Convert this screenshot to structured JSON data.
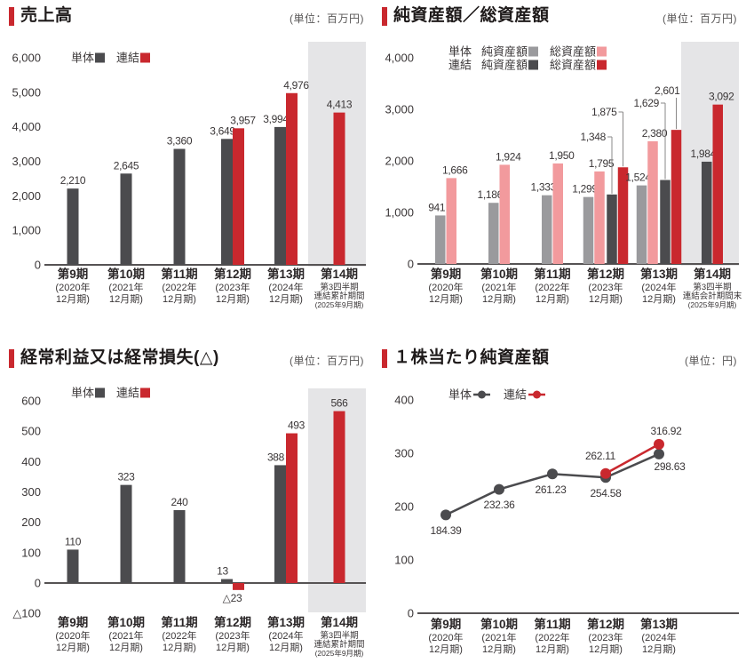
{
  "colors": {
    "dark": "#4b4b4e",
    "red": "#c9282e",
    "gray": "#9a9a9d",
    "pink": "#f29a9d",
    "band": "#e5e5e7",
    "axis": "#565354",
    "tick_text": "#3a3637",
    "label_text": "#3a3637",
    "cat_text": "#2b2728",
    "title_text": "#1e1a1a",
    "unit_text": "#595757",
    "leader": "#8a8888"
  },
  "charts": [
    {
      "title": "売上高",
      "unit": "(単位：百万円)",
      "legend_rows": [
        {
          "items": [
            {
              "label": "単体",
              "color_key": "dark"
            },
            {
              "label": "連結",
              "color_key": "red"
            }
          ]
        }
      ],
      "chart_data": {
        "type": "bar",
        "ylabel_unit": "百万円",
        "ylim": [
          0,
          6000
        ],
        "yticks": [
          {
            "v": 6000,
            "label": "6,000"
          },
          {
            "v": 5000,
            "label": "5,000"
          },
          {
            "v": 4000,
            "label": "4,000"
          },
          {
            "v": 3000,
            "label": "3,000"
          },
          {
            "v": 2000,
            "label": "2,000"
          },
          {
            "v": 1000,
            "label": "1,000"
          },
          {
            "v": 0,
            "label": "0"
          }
        ],
        "categories": [
          [
            "第9期",
            "(2020年",
            "12月期)"
          ],
          [
            "第10期",
            "(2021年",
            "12月期)"
          ],
          [
            "第11期",
            "(2022年",
            "12月期)"
          ],
          [
            "第12期",
            "(2023年",
            "12月期)"
          ],
          [
            "第13期",
            "(2024年",
            "12月期)"
          ],
          [
            "第14期",
            "第3四半期",
            "連結累計期間",
            "(2025年9月期)"
          ]
        ],
        "series": [
          {
            "name": "単体",
            "color_key": "dark",
            "values": [
              2210,
              2645,
              3360,
              3649,
              3994,
              null
            ]
          },
          {
            "name": "連結",
            "color_key": "red",
            "values": [
              null,
              null,
              null,
              3957,
              4976,
              4413
            ]
          }
        ],
        "highlight_last_category": true
      }
    },
    {
      "title": "純資産額／総資産額",
      "unit": "(単位：百万円)",
      "legend_rows": [
        {
          "prefix": "単体",
          "items": [
            {
              "label": "純資産額",
              "color_key": "gray"
            },
            {
              "label": "総資産額",
              "color_key": "pink"
            }
          ]
        },
        {
          "prefix": "連結",
          "items": [
            {
              "label": "純資産額",
              "color_key": "dark"
            },
            {
              "label": "総資産額",
              "color_key": "red"
            }
          ]
        }
      ],
      "chart_data": {
        "type": "bar",
        "ylabel_unit": "百万円",
        "ylim": [
          0,
          4000
        ],
        "yticks": [
          {
            "v": 4000,
            "label": "4,000"
          },
          {
            "v": 3000,
            "label": "3,000"
          },
          {
            "v": 2000,
            "label": "2,000"
          },
          {
            "v": 1000,
            "label": "1,000"
          },
          {
            "v": 0,
            "label": "0"
          }
        ],
        "categories": [
          [
            "第9期",
            "(2020年",
            "12月期)"
          ],
          [
            "第10期",
            "(2021年",
            "12月期)"
          ],
          [
            "第11期",
            "(2022年",
            "12月期)"
          ],
          [
            "第12期",
            "(2023年",
            "12月期)"
          ],
          [
            "第13期",
            "(2024年",
            "12月期)"
          ],
          [
            "第14期",
            "第3四半期",
            "連結会計期間末",
            "(2025年9月期)"
          ]
        ],
        "series": [
          {
            "name": "単体 純資産額",
            "color_key": "gray",
            "values": [
              941,
              1186,
              1333,
              1299,
              1524,
              null
            ]
          },
          {
            "name": "単体 総資産額",
            "color_key": "pink",
            "values": [
              1666,
              1924,
              1950,
              1795,
              2380,
              null
            ]
          },
          {
            "name": "連結 純資産額",
            "color_key": "dark",
            "values": [
              null,
              null,
              null,
              1348,
              1629,
              1984
            ]
          },
          {
            "name": "連結 総資産額",
            "color_key": "red",
            "values": [
              null,
              null,
              null,
              1875,
              2601,
              3092
            ]
          }
        ],
        "highlight_last_category": true
      }
    },
    {
      "title": "経常利益又は経常損失(△)",
      "unit": "(単位：百万円)",
      "legend_rows": [
        {
          "items": [
            {
              "label": "単体",
              "color_key": "dark"
            },
            {
              "label": "連結",
              "color_key": "red"
            }
          ]
        }
      ],
      "chart_data": {
        "type": "bar",
        "ylabel_unit": "百万円",
        "ylim": [
          -100,
          600
        ],
        "yticks": [
          {
            "v": 600,
            "label": "600"
          },
          {
            "v": 500,
            "label": "500"
          },
          {
            "v": 400,
            "label": "400"
          },
          {
            "v": 300,
            "label": "300"
          },
          {
            "v": 200,
            "label": "200"
          },
          {
            "v": 100,
            "label": "100"
          },
          {
            "v": 0,
            "label": "0"
          },
          {
            "v": -100,
            "label": "△100"
          }
        ],
        "categories": [
          [
            "第9期",
            "(2020年",
            "12月期)"
          ],
          [
            "第10期",
            "(2021年",
            "12月期)"
          ],
          [
            "第11期",
            "(2022年",
            "12月期)"
          ],
          [
            "第12期",
            "(2023年",
            "12月期)"
          ],
          [
            "第13期",
            "(2024年",
            "12月期)"
          ],
          [
            "第14期",
            "第3四半期",
            "連結累計期間",
            "(2025年9月期)"
          ]
        ],
        "series": [
          {
            "name": "単体",
            "color_key": "dark",
            "values": [
              110,
              323,
              240,
              13,
              388,
              null
            ]
          },
          {
            "name": "連結",
            "color_key": "red",
            "values": [
              null,
              null,
              null,
              -23,
              493,
              566
            ]
          }
        ],
        "highlight_last_category": true
      }
    },
    {
      "title": "１株当たり純資産額",
      "unit": "(単位：円)",
      "legend_rows": [
        {
          "items": [
            {
              "label": "単体",
              "color_key": "dark",
              "marker": "line-dot"
            },
            {
              "label": "連結",
              "color_key": "red",
              "marker": "line-dot"
            }
          ]
        }
      ],
      "chart_data": {
        "type": "line",
        "ylabel_unit": "円",
        "ylim": [
          0,
          400
        ],
        "decimals": 2,
        "yticks": [
          {
            "v": 400,
            "label": "400"
          },
          {
            "v": 300,
            "label": "300"
          },
          {
            "v": 200,
            "label": "200"
          },
          {
            "v": 100,
            "label": "100"
          },
          {
            "v": 0,
            "label": "0"
          }
        ],
        "categories": [
          [
            "第9期",
            "(2020年",
            "12月期)"
          ],
          [
            "第10期",
            "(2021年",
            "12月期)"
          ],
          [
            "第11期",
            "(2022年",
            "12月期)"
          ],
          [
            "第12期",
            "(2023年",
            "12月期)"
          ],
          [
            "第13期",
            "(2024年",
            "12月期)"
          ]
        ],
        "series": [
          {
            "name": "単体",
            "color_key": "dark",
            "values": [
              184.39,
              232.36,
              261.23,
              254.58,
              298.63
            ]
          },
          {
            "name": "連結",
            "color_key": "red",
            "values": [
              null,
              null,
              null,
              262.11,
              316.92
            ]
          }
        ],
        "highlight_last_category": false
      }
    }
  ]
}
